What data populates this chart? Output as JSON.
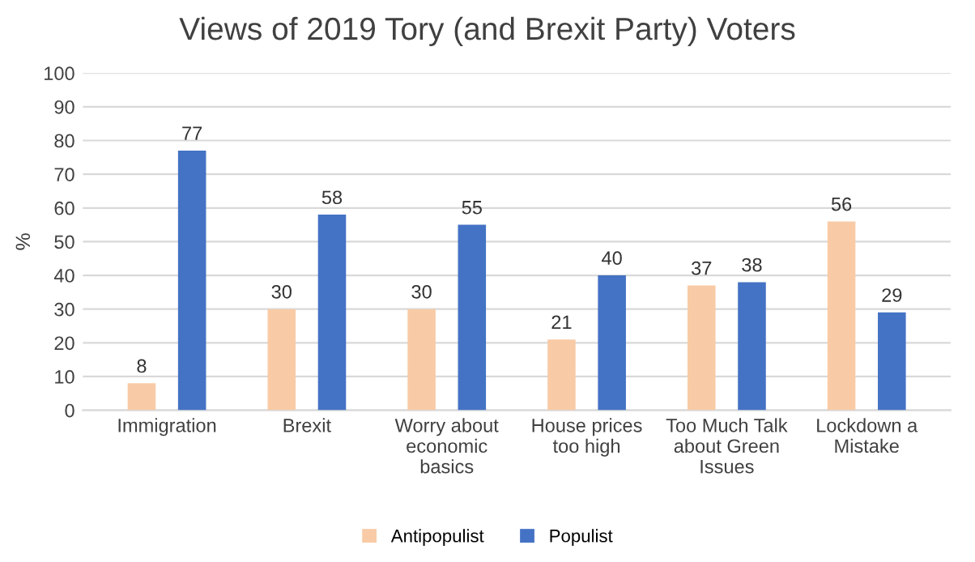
{
  "chart_data": {
    "type": "bar",
    "title": "Views of 2019 Tory (and Brexit Party) Voters",
    "ylabel": "%",
    "categories": [
      "Immigration",
      "Brexit",
      "Worry about economic basics",
      "House prices too high",
      "Too Much Talk about Green Issues",
      "Lockdown a Mistake"
    ],
    "series": [
      {
        "name": "Antipopulist",
        "color": "#f8cba6",
        "values": [
          8,
          30,
          30,
          21,
          37,
          56
        ]
      },
      {
        "name": "Populist",
        "color": "#4472c4",
        "values": [
          77,
          58,
          55,
          40,
          38,
          29
        ]
      }
    ],
    "ylim": [
      0,
      100
    ],
    "yticks": [
      0,
      10,
      20,
      30,
      40,
      50,
      60,
      70,
      80,
      90,
      100
    ],
    "grid": "y",
    "legend": "bottom",
    "data_labels": true
  }
}
